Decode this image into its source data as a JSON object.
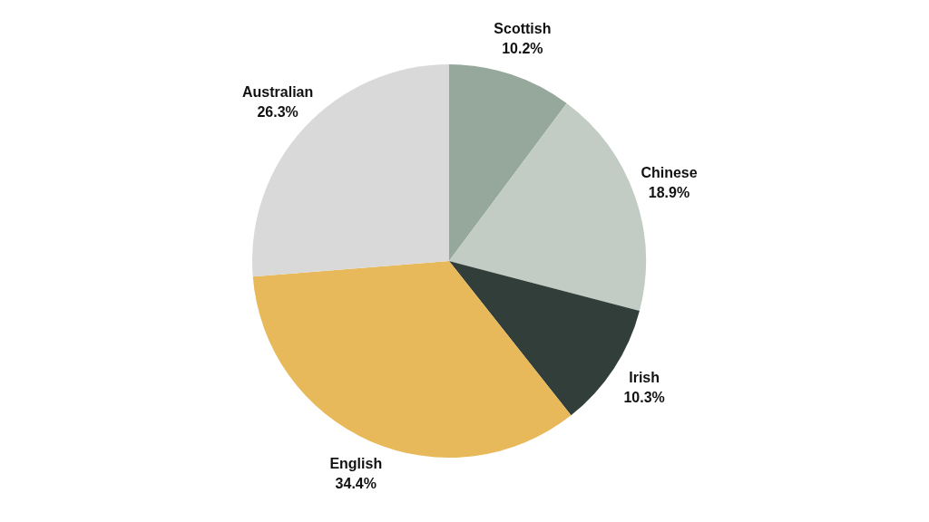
{
  "chart_data": {
    "type": "pie",
    "categories": [
      "Scottish",
      "Chinese",
      "Irish",
      "English",
      "Australian"
    ],
    "values": [
      10.2,
      18.9,
      10.3,
      34.4,
      26.3
    ],
    "value_labels": [
      "10.2%",
      "18.9%",
      "10.3%",
      "34.4%",
      "26.3%"
    ],
    "colors": [
      "#95a89b",
      "#c2ccc4",
      "#313e39",
      "#e8b95a",
      "#d9d9d9"
    ]
  }
}
